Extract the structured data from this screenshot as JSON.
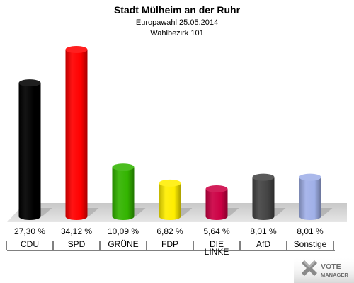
{
  "header": {
    "title": "Stadt Mülheim an der Ruhr",
    "subtitle1": "Europawahl 25.05.2014",
    "subtitle2": "Wahlbezirk 101"
  },
  "chart_data": {
    "type": "bar",
    "title": "Stadt Mülheim an der Ruhr",
    "subtitle": [
      "Europawahl 25.05.2014",
      "Wahlbezirk 101"
    ],
    "categories": [
      "CDU",
      "SPD",
      "GRÜNE",
      "FDP",
      "DIE LINKE",
      "AfD",
      "Sonstige"
    ],
    "category_lines": [
      [
        "CDU"
      ],
      [
        "SPD"
      ],
      [
        "GRÜNE"
      ],
      [
        "FDP"
      ],
      [
        "DIE",
        "LINKE"
      ],
      [
        "AfD"
      ],
      [
        "Sonstige"
      ]
    ],
    "values": [
      27.3,
      34.12,
      10.09,
      6.82,
      5.64,
      8.01,
      8.01
    ],
    "value_labels": [
      "27,30 %",
      "34,12 %",
      "10,09 %",
      "6,82 %",
      "5,64 %",
      "8,01 %",
      "8,01 %"
    ],
    "colors": [
      "#000000",
      "#ff0000",
      "#33b400",
      "#ffee00",
      "#cc0044",
      "#444444",
      "#a0b0e8"
    ],
    "ylim": [
      0,
      34.12
    ],
    "xlabel": "",
    "ylabel": "",
    "grid": false,
    "legend": "none"
  },
  "logo": {
    "line1": "VOTE",
    "line2": "MANAGER",
    "icon": "vote-cross-icon"
  }
}
